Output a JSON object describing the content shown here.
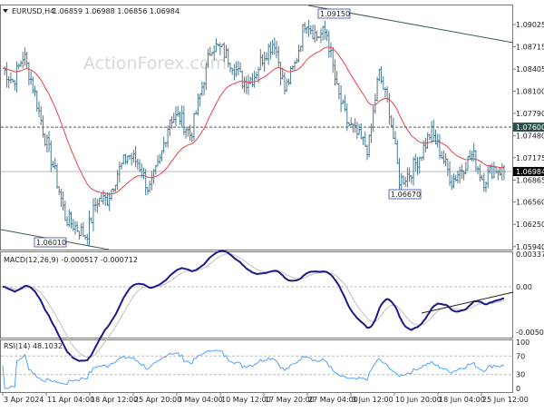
{
  "header": {
    "symbol": "EURUSD,H4",
    "ohlc": "1.06859 1.06988 1.06856 1.06984"
  },
  "watermark": "ActionForex.com",
  "chart_data": [
    {
      "type": "line",
      "title": "EURUSD,H4",
      "series_name": "EURUSD close",
      "ylim": [
        1.0594,
        1.0933
      ],
      "y_ticks": [
        "1.09025",
        "1.08715",
        "1.08405",
        "1.08100",
        "1.07790",
        "1.07480",
        "1.07175",
        "1.06865",
        "1.06560",
        "1.06250",
        "1.05940"
      ],
      "x_ticks": [
        "3 Apr 2024",
        "11 Apr 04:00",
        "18 Apr 12:00",
        "25 Apr 20:00",
        "3 May 04:00",
        "10 May 12:00",
        "17 May 20:00",
        "27 May 04:00",
        "3 Jun 12:00",
        "10 Jun 20:00",
        "18 Jun 04:00",
        "25 Jun 12:00"
      ],
      "close": [
        1.0842,
        1.0823,
        1.0861,
        1.0811,
        1.0748,
        1.0697,
        1.0634,
        1.0621,
        1.0609,
        1.0659,
        1.0659,
        1.0697,
        1.0722,
        1.071,
        1.0672,
        1.071,
        1.0773,
        1.0773,
        1.0748,
        1.0811,
        1.0874,
        1.0867,
        1.0848,
        1.0823,
        1.0829,
        1.0861,
        1.088,
        1.0811,
        1.0848,
        1.0911,
        1.0886,
        1.0892,
        1.0811,
        1.0766,
        1.0748,
        1.0729,
        1.0836,
        1.0785,
        1.0685,
        1.0697,
        1.0722,
        1.0754,
        1.0722,
        1.0685,
        1.0704,
        1.0722,
        1.0685,
        1.0704,
        1.0698
      ],
      "annotations": [
        {
          "label": "1.09150",
          "price": 1.0915
        },
        {
          "label": "1.06670",
          "price": 1.0667
        },
        {
          "label": "1.06010",
          "price": 1.0601
        }
      ],
      "level_line": {
        "label": "1.07600",
        "price": 1.076
      },
      "current_price": {
        "label": "1.06984",
        "price": 1.06984
      },
      "colors": {
        "bars": "#4a7a93",
        "ma": "#e8424a",
        "trendline": "#3d5a5a"
      }
    },
    {
      "type": "line",
      "title": "MACD(12,26,9) -0.000517 -0.000712",
      "y_ticks": [
        "0.003375",
        "0.00",
        "-0.00504"
      ],
      "ylim": [
        -0.00504,
        0.003375
      ],
      "colors": {
        "macd": "#1a1a8c",
        "signal": "#c0c0c0"
      }
    },
    {
      "type": "line",
      "title": "RSI(14) 48.1032",
      "y_ticks": [
        "100",
        "70",
        "30",
        "0"
      ],
      "ylim": [
        0,
        100
      ],
      "colors": {
        "rsi": "#4da3ff"
      }
    }
  ]
}
